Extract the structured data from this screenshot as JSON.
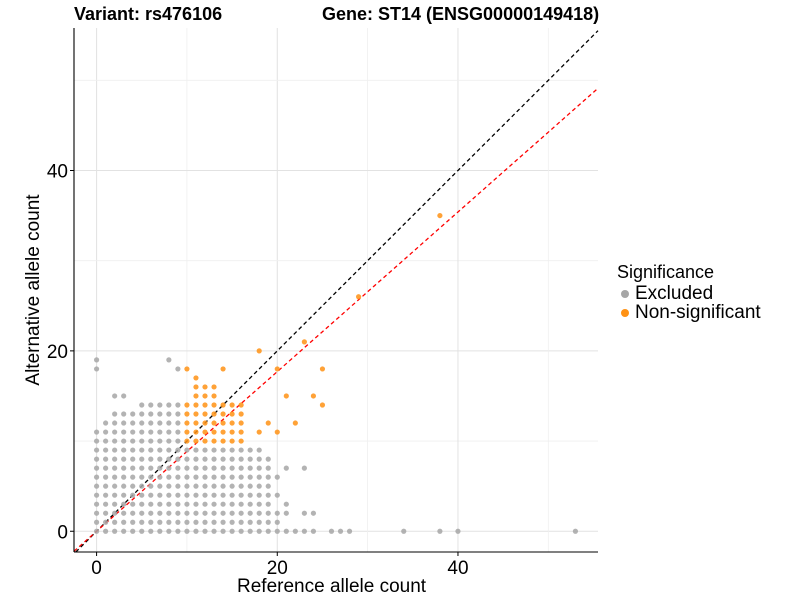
{
  "chart_data": {
    "type": "scatter",
    "title_variant": "Variant: rs476106",
    "title_gene": "Gene: ST14 (ENSG00000149418)",
    "xlabel": "Reference allele count",
    "ylabel": "Alternative allele count",
    "xlim": [
      -2.5,
      55.5
    ],
    "ylim": [
      -2.3,
      55.8
    ],
    "x_ticks": [
      0,
      20,
      40
    ],
    "y_ticks": [
      0,
      20,
      40
    ],
    "legend": {
      "title": "Significance",
      "items": [
        {
          "name": "Excluded",
          "color": "#a6a6a6"
        },
        {
          "name": "Non-significant",
          "color": "#ff9214"
        }
      ]
    },
    "reference_lines": [
      {
        "name": "identity",
        "slope": 1.0,
        "intercept": 0,
        "color": "#000000",
        "dash": true
      },
      {
        "name": "expected-ratio",
        "slope": 0.885,
        "intercept": 0,
        "color": "#ff0000",
        "dash": true
      }
    ],
    "series": [
      {
        "name": "Excluded",
        "color": "#a6a6a6",
        "points": [
          [
            0,
            0
          ],
          [
            1,
            0
          ],
          [
            2,
            0
          ],
          [
            3,
            0
          ],
          [
            4,
            0
          ],
          [
            5,
            0
          ],
          [
            6,
            0
          ],
          [
            7,
            0
          ],
          [
            8,
            0
          ],
          [
            9,
            0
          ],
          [
            10,
            0
          ],
          [
            11,
            0
          ],
          [
            12,
            0
          ],
          [
            13,
            0
          ],
          [
            14,
            0
          ],
          [
            15,
            0
          ],
          [
            16,
            0
          ],
          [
            17,
            0
          ],
          [
            18,
            0
          ],
          [
            19,
            0
          ],
          [
            20,
            0
          ],
          [
            21,
            0
          ],
          [
            22,
            0
          ],
          [
            23,
            0
          ],
          [
            24,
            0
          ],
          [
            26,
            0
          ],
          [
            27,
            0
          ],
          [
            28,
            0
          ],
          [
            34,
            0
          ],
          [
            38,
            0
          ],
          [
            40,
            0
          ],
          [
            53,
            0
          ],
          [
            0,
            19
          ],
          [
            0,
            18
          ],
          [
            8,
            19
          ],
          [
            9,
            18
          ],
          [
            0,
            11
          ],
          [
            0,
            10
          ],
          [
            0,
            9
          ],
          [
            0,
            8
          ],
          [
            0,
            7
          ],
          [
            0,
            6
          ],
          [
            0,
            5
          ],
          [
            0,
            4
          ],
          [
            0,
            3
          ],
          [
            0,
            2
          ],
          [
            0,
            1
          ],
          [
            1,
            12
          ],
          [
            1,
            11
          ],
          [
            1,
            10
          ],
          [
            1,
            9
          ],
          [
            1,
            8
          ],
          [
            1,
            7
          ],
          [
            1,
            6
          ],
          [
            1,
            5
          ],
          [
            1,
            4
          ],
          [
            1,
            3
          ],
          [
            1,
            2
          ],
          [
            1,
            1
          ],
          [
            2,
            15
          ],
          [
            2,
            13
          ],
          [
            2,
            12
          ],
          [
            2,
            11
          ],
          [
            2,
            10
          ],
          [
            2,
            9
          ],
          [
            2,
            8
          ],
          [
            2,
            7
          ],
          [
            2,
            6
          ],
          [
            2,
            5
          ],
          [
            2,
            4
          ],
          [
            2,
            3
          ],
          [
            2,
            2
          ],
          [
            2,
            1
          ],
          [
            3,
            15
          ],
          [
            3,
            13
          ],
          [
            3,
            12
          ],
          [
            3,
            11
          ],
          [
            3,
            10
          ],
          [
            3,
            9
          ],
          [
            3,
            8
          ],
          [
            3,
            7
          ],
          [
            3,
            6
          ],
          [
            3,
            5
          ],
          [
            3,
            4
          ],
          [
            3,
            3
          ],
          [
            3,
            2
          ],
          [
            3,
            1
          ],
          [
            4,
            13
          ],
          [
            4,
            12
          ],
          [
            4,
            11
          ],
          [
            4,
            10
          ],
          [
            4,
            9
          ],
          [
            4,
            8
          ],
          [
            4,
            7
          ],
          [
            4,
            6
          ],
          [
            4,
            5
          ],
          [
            4,
            4
          ],
          [
            4,
            3
          ],
          [
            4,
            2
          ],
          [
            4,
            1
          ],
          [
            5,
            14
          ],
          [
            5,
            13
          ],
          [
            5,
            12
          ],
          [
            5,
            11
          ],
          [
            5,
            10
          ],
          [
            5,
            9
          ],
          [
            5,
            8
          ],
          [
            5,
            7
          ],
          [
            5,
            6
          ],
          [
            5,
            5
          ],
          [
            5,
            4
          ],
          [
            5,
            3
          ],
          [
            5,
            2
          ],
          [
            5,
            1
          ],
          [
            6,
            14
          ],
          [
            6,
            13
          ],
          [
            6,
            12
          ],
          [
            6,
            11
          ],
          [
            6,
            10
          ],
          [
            6,
            9
          ],
          [
            6,
            8
          ],
          [
            6,
            7
          ],
          [
            6,
            6
          ],
          [
            6,
            5
          ],
          [
            6,
            4
          ],
          [
            6,
            3
          ],
          [
            6,
            2
          ],
          [
            6,
            1
          ],
          [
            7,
            14
          ],
          [
            7,
            13
          ],
          [
            7,
            12
          ],
          [
            7,
            11
          ],
          [
            7,
            10
          ],
          [
            7,
            9
          ],
          [
            7,
            8
          ],
          [
            7,
            7
          ],
          [
            7,
            6
          ],
          [
            7,
            5
          ],
          [
            7,
            4
          ],
          [
            7,
            3
          ],
          [
            7,
            2
          ],
          [
            7,
            1
          ],
          [
            8,
            14
          ],
          [
            8,
            13
          ],
          [
            8,
            12
          ],
          [
            8,
            11
          ],
          [
            8,
            10
          ],
          [
            8,
            9
          ],
          [
            8,
            8
          ],
          [
            8,
            7
          ],
          [
            8,
            6
          ],
          [
            8,
            5
          ],
          [
            8,
            4
          ],
          [
            8,
            3
          ],
          [
            8,
            2
          ],
          [
            8,
            1
          ],
          [
            9,
            14
          ],
          [
            9,
            13
          ],
          [
            9,
            12
          ],
          [
            9,
            11
          ],
          [
            9,
            10
          ],
          [
            9,
            9
          ],
          [
            9,
            8
          ],
          [
            9,
            7
          ],
          [
            9,
            6
          ],
          [
            9,
            5
          ],
          [
            9,
            4
          ],
          [
            9,
            3
          ],
          [
            9,
            2
          ],
          [
            9,
            1
          ],
          [
            10,
            9
          ],
          [
            10,
            8
          ],
          [
            10,
            7
          ],
          [
            10,
            6
          ],
          [
            10,
            5
          ],
          [
            10,
            4
          ],
          [
            10,
            3
          ],
          [
            10,
            2
          ],
          [
            10,
            1
          ],
          [
            11,
            9
          ],
          [
            11,
            8
          ],
          [
            11,
            7
          ],
          [
            11,
            6
          ],
          [
            11,
            5
          ],
          [
            11,
            4
          ],
          [
            11,
            3
          ],
          [
            11,
            2
          ],
          [
            11,
            1
          ],
          [
            12,
            9
          ],
          [
            12,
            8
          ],
          [
            12,
            7
          ],
          [
            12,
            6
          ],
          [
            12,
            5
          ],
          [
            12,
            4
          ],
          [
            12,
            3
          ],
          [
            12,
            2
          ],
          [
            12,
            1
          ],
          [
            13,
            9
          ],
          [
            13,
            8
          ],
          [
            13,
            7
          ],
          [
            13,
            6
          ],
          [
            13,
            5
          ],
          [
            13,
            4
          ],
          [
            13,
            3
          ],
          [
            13,
            2
          ],
          [
            13,
            1
          ],
          [
            14,
            9
          ],
          [
            14,
            8
          ],
          [
            14,
            7
          ],
          [
            14,
            6
          ],
          [
            14,
            5
          ],
          [
            14,
            4
          ],
          [
            14,
            3
          ],
          [
            14,
            2
          ],
          [
            14,
            1
          ],
          [
            15,
            9
          ],
          [
            15,
            8
          ],
          [
            15,
            7
          ],
          [
            15,
            6
          ],
          [
            15,
            5
          ],
          [
            15,
            4
          ],
          [
            15,
            3
          ],
          [
            15,
            2
          ],
          [
            15,
            1
          ],
          [
            16,
            9
          ],
          [
            16,
            8
          ],
          [
            16,
            7
          ],
          [
            16,
            6
          ],
          [
            16,
            5
          ],
          [
            16,
            4
          ],
          [
            16,
            3
          ],
          [
            16,
            2
          ],
          [
            16,
            1
          ],
          [
            17,
            9
          ],
          [
            17,
            8
          ],
          [
            17,
            7
          ],
          [
            17,
            6
          ],
          [
            17,
            5
          ],
          [
            17,
            4
          ],
          [
            17,
            3
          ],
          [
            17,
            2
          ],
          [
            17,
            1
          ],
          [
            18,
            9
          ],
          [
            18,
            8
          ],
          [
            18,
            7
          ],
          [
            18,
            6
          ],
          [
            18,
            5
          ],
          [
            18,
            4
          ],
          [
            18,
            3
          ],
          [
            18,
            2
          ],
          [
            18,
            1
          ],
          [
            19,
            8
          ],
          [
            19,
            7
          ],
          [
            19,
            6
          ],
          [
            19,
            5
          ],
          [
            19,
            4
          ],
          [
            19,
            3
          ],
          [
            19,
            2
          ],
          [
            19,
            1
          ],
          [
            20,
            6
          ],
          [
            20,
            4
          ],
          [
            20,
            2
          ],
          [
            20,
            1
          ],
          [
            21,
            7
          ],
          [
            21,
            3
          ],
          [
            21,
            2
          ],
          [
            23,
            7
          ],
          [
            23,
            2
          ],
          [
            24,
            2
          ]
        ]
      },
      {
        "name": "Non-significant",
        "color": "#ff9214",
        "points": [
          [
            38,
            35
          ],
          [
            29,
            26
          ],
          [
            23,
            21
          ],
          [
            18,
            20
          ],
          [
            20,
            18
          ],
          [
            10,
            18
          ],
          [
            14,
            18
          ],
          [
            25,
            18
          ],
          [
            11,
            17
          ],
          [
            21,
            15
          ],
          [
            24,
            15
          ],
          [
            25,
            14
          ],
          [
            19,
            12
          ],
          [
            22,
            12
          ],
          [
            18,
            11
          ],
          [
            20,
            11
          ],
          [
            11,
            16
          ],
          [
            12,
            16
          ],
          [
            13,
            16
          ],
          [
            11,
            15
          ],
          [
            12,
            15
          ],
          [
            13,
            15
          ],
          [
            10,
            14
          ],
          [
            11,
            14
          ],
          [
            12,
            14
          ],
          [
            13,
            14
          ],
          [
            14,
            14
          ],
          [
            15,
            14
          ],
          [
            16,
            14
          ],
          [
            10,
            13
          ],
          [
            11,
            13
          ],
          [
            12,
            13
          ],
          [
            13,
            13
          ],
          [
            14,
            13
          ],
          [
            15,
            13
          ],
          [
            16,
            13
          ],
          [
            10,
            12
          ],
          [
            11,
            12
          ],
          [
            12,
            12
          ],
          [
            13,
            12
          ],
          [
            14,
            12
          ],
          [
            15,
            12
          ],
          [
            16,
            12
          ],
          [
            10,
            11
          ],
          [
            11,
            11
          ],
          [
            12,
            11
          ],
          [
            13,
            11
          ],
          [
            14,
            11
          ],
          [
            15,
            11
          ],
          [
            16,
            11
          ],
          [
            10,
            10
          ],
          [
            11,
            10
          ],
          [
            12,
            10
          ],
          [
            13,
            10
          ],
          [
            14,
            10
          ],
          [
            15,
            10
          ],
          [
            16,
            10
          ]
        ]
      }
    ]
  }
}
